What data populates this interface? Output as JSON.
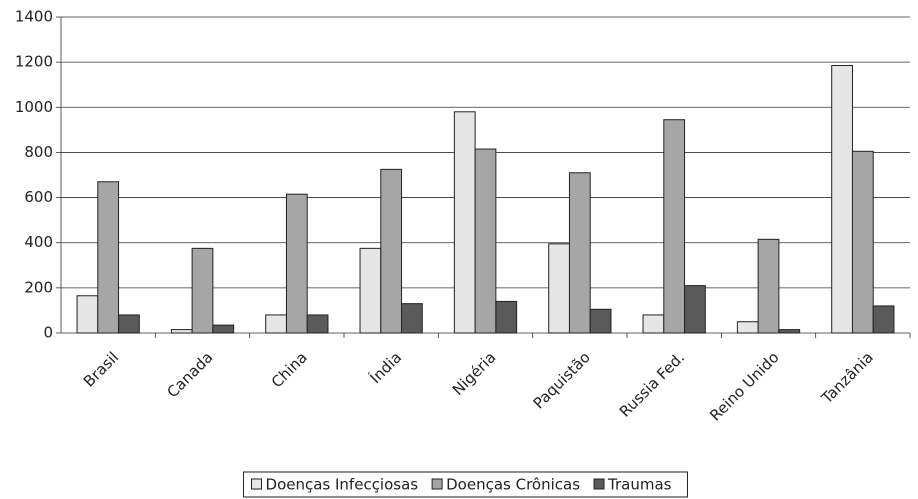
{
  "chart_data": {
    "type": "bar",
    "categories": [
      "Brasil",
      "Canada",
      "China",
      "Índia",
      "Nigéria",
      "Paquistão",
      "Russia Fed.",
      "Reino Unido",
      "Tanzânia"
    ],
    "series": [
      {
        "name": "Doenças Infecçiosas",
        "color": "#e6e6e6",
        "values": [
          165,
          15,
          80,
          375,
          980,
          395,
          80,
          50,
          1185
        ]
      },
      {
        "name": "Doenças Crônicas",
        "color": "#a6a6a6",
        "values": [
          670,
          375,
          615,
          725,
          815,
          710,
          945,
          415,
          805
        ]
      },
      {
        "name": "Traumas",
        "color": "#5a5a5a",
        "values": [
          80,
          35,
          80,
          130,
          140,
          105,
          210,
          15,
          120
        ]
      }
    ],
    "ylim": [
      0,
      1400
    ],
    "yticks": [
      0,
      200,
      400,
      600,
      800,
      1000,
      1200,
      1400
    ],
    "grid": true
  }
}
